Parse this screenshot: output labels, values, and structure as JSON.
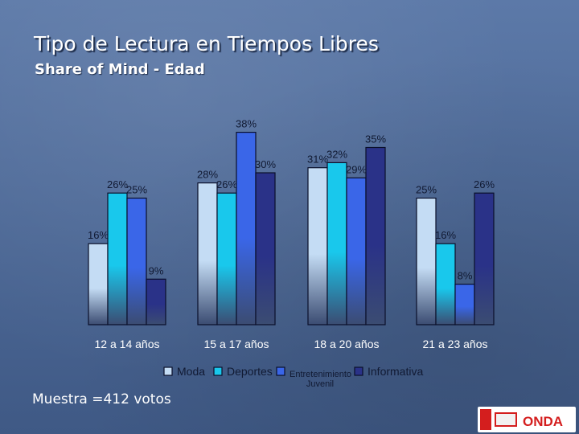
{
  "slide": {
    "title": "Tipo de Lectura en Tiempos Libres",
    "subtitle": "Share of Mind - Edad",
    "footnote": "Muestra =412 votos"
  },
  "colors": {
    "Moda": "#c4dcf4",
    "Deportes": "#19c8ec",
    "Entretenimiento Juvenil": "#3a66e8",
    "Informativa": "#2a3288"
  },
  "chart_data": {
    "type": "bar",
    "title": "",
    "xlabel": "",
    "ylabel": "",
    "categories": [
      "12 a 14 años",
      "15 a 17 años",
      "18 a 20 años",
      "21 a 23 años"
    ],
    "series": [
      {
        "name": "Moda",
        "values": [
          16,
          28,
          31,
          25
        ]
      },
      {
        "name": "Deportes",
        "values": [
          26,
          26,
          32,
          16
        ]
      },
      {
        "name": "Entretenimiento Juvenil",
        "values": [
          25,
          38,
          29,
          8
        ]
      },
      {
        "name": "Informativa",
        "values": [
          9,
          30,
          35,
          26
        ]
      }
    ],
    "legend": [
      {
        "label": "Moda"
      },
      {
        "label": "Deportes"
      },
      {
        "label": "Entretenimiento",
        "label2": "Juvenil"
      },
      {
        "label": "Informativa"
      }
    ],
    "ylim": [
      0,
      40
    ],
    "legend_position": "bottom",
    "grid": false
  },
  "logo": {
    "text": "ONDA"
  }
}
